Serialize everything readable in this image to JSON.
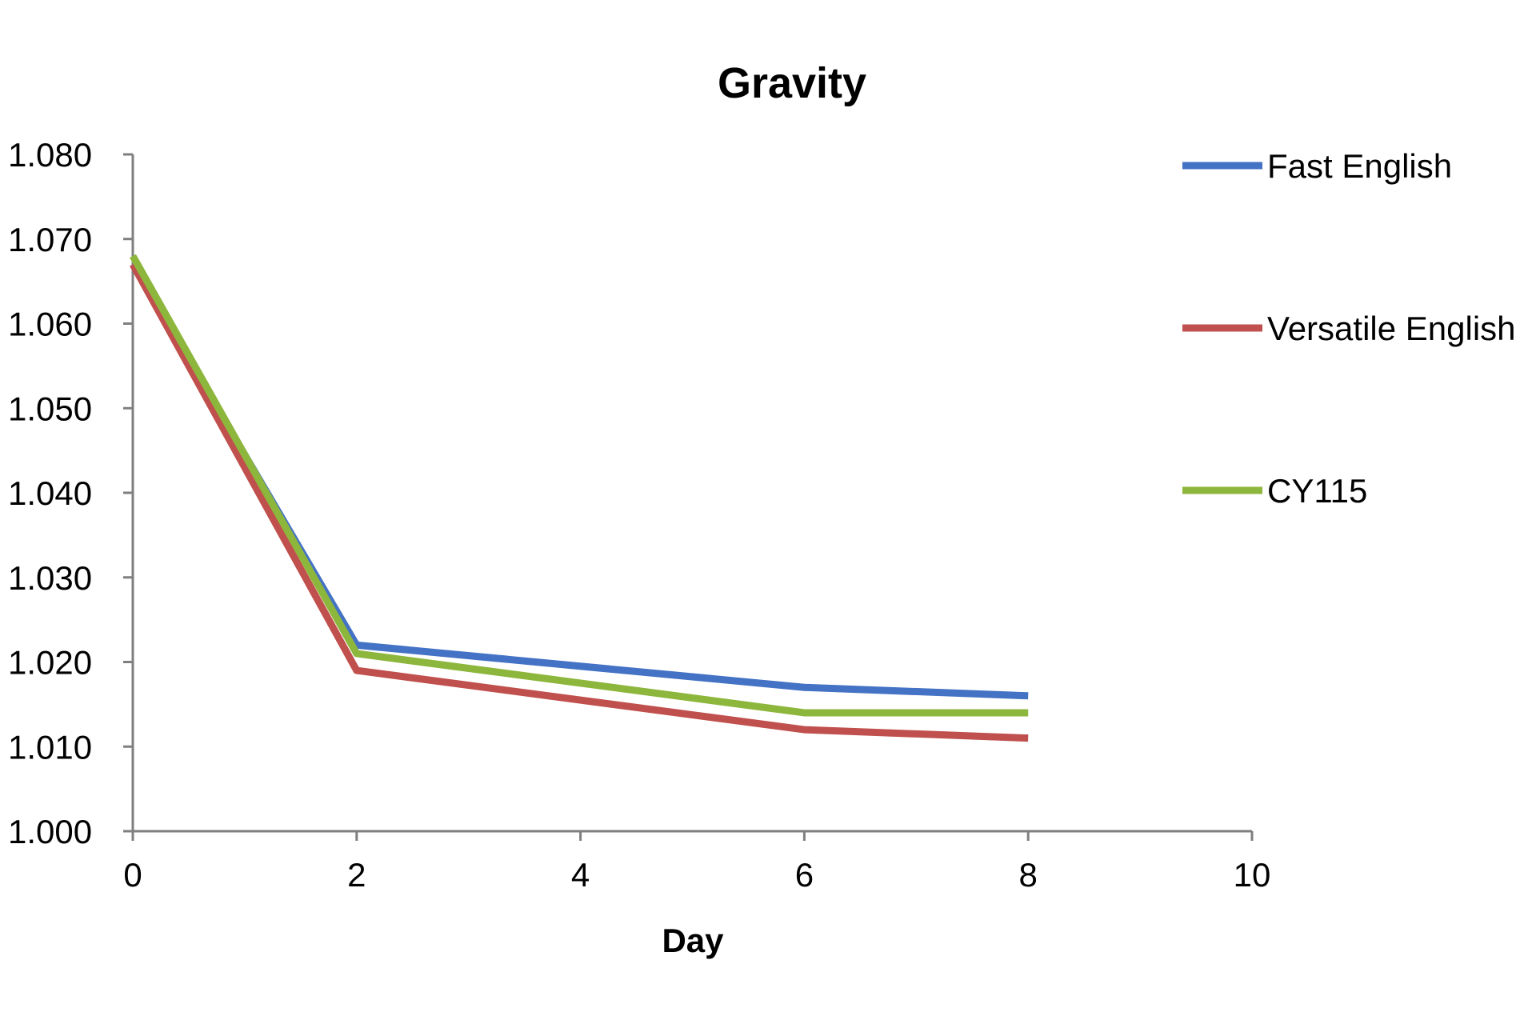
{
  "chart_data": {
    "type": "line",
    "title": "Gravity",
    "xlabel": "Day",
    "ylabel": "",
    "xlim": [
      0,
      10
    ],
    "ylim": [
      1.0,
      1.08
    ],
    "xticks": [
      0,
      2,
      4,
      6,
      8,
      10
    ],
    "yticks": [
      1.0,
      1.01,
      1.02,
      1.03,
      1.04,
      1.05,
      1.06,
      1.07,
      1.08
    ],
    "xtick_labels": [
      "0",
      "2",
      "4",
      "6",
      "8",
      "10"
    ],
    "ytick_labels": [
      "1.000",
      "1.010",
      "1.020",
      "1.030",
      "1.040",
      "1.050",
      "1.060",
      "1.070",
      "1.080"
    ],
    "grid": false,
    "legend": "right",
    "x": [
      0,
      2,
      6,
      8
    ],
    "series": [
      {
        "name": "Fast English",
        "color": "#4472c4",
        "values": [
          1.067,
          1.022,
          1.017,
          1.016
        ]
      },
      {
        "name": "Versatile English",
        "color": "#c0504d",
        "values": [
          1.067,
          1.019,
          1.012,
          1.011
        ]
      },
      {
        "name": "CY115",
        "color": "#8db63c",
        "values": [
          1.068,
          1.021,
          1.014,
          1.014
        ]
      }
    ]
  }
}
